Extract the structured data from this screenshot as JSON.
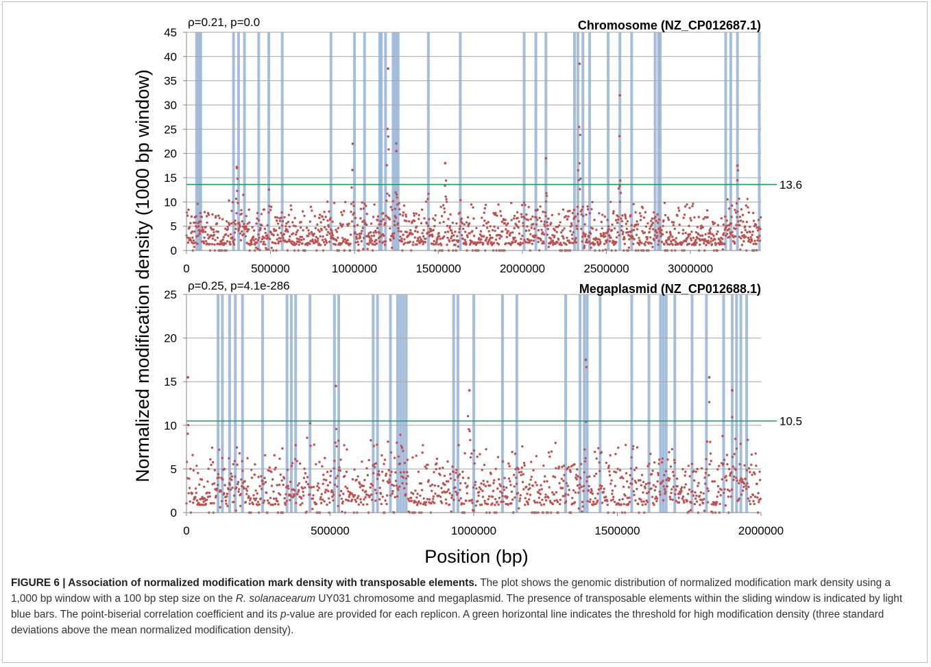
{
  "chart_data": [
    {
      "type": "scatter",
      "replicon_label": "Chromosome (NZ_CP012687.1)",
      "stat_label": "ρ=0.21, p=0.0",
      "xlim": [
        0,
        3420000
      ],
      "ylim": [
        0,
        45
      ],
      "xticks": [
        0,
        500000,
        1000000,
        1500000,
        2000000,
        2500000,
        3000000
      ],
      "yticks": [
        0,
        5,
        10,
        15,
        20,
        25,
        30,
        35,
        40,
        45
      ],
      "grid": "horizontal",
      "threshold": 13.6,
      "threshold_label": "13.6",
      "point_color": "#c0504d",
      "bar_color": "#95b3d7",
      "threshold_color": "#00a651",
      "transposable_element_positions": [
        60000,
        75000,
        85000,
        280000,
        310000,
        345000,
        430000,
        490000,
        570000,
        860000,
        1000000,
        1060000,
        1150000,
        1160000,
        1185000,
        1230000,
        1245000,
        1260000,
        1440000,
        1630000,
        2010000,
        2080000,
        2140000,
        2310000,
        2330000,
        2360000,
        2400000,
        2510000,
        2580000,
        2650000,
        2790000,
        2810000,
        2820000,
        3210000,
        3240000,
        3280000,
        3410000
      ],
      "density_peaks": [
        {
          "x": 1200000,
          "y": 37.5
        },
        {
          "x": 2340000,
          "y": 38.5
        },
        {
          "x": 2580000,
          "y": 32.0
        },
        {
          "x": 990000,
          "y": 22.0
        },
        {
          "x": 2140000,
          "y": 19.0
        },
        {
          "x": 3280000,
          "y": 17.5
        },
        {
          "x": 300000,
          "y": 17.0
        },
        {
          "x": 1250000,
          "y": 20.5
        },
        {
          "x": 1540000,
          "y": 18.0
        }
      ]
    },
    {
      "type": "scatter",
      "replicon_label": "Megaplasmid (NZ_CP012688.1)",
      "stat_label": "ρ=0.25, p=4.1e-286",
      "xlim": [
        0,
        2000000
      ],
      "ylim": [
        0,
        25
      ],
      "xticks": [
        0,
        500000,
        1000000,
        1500000,
        2000000
      ],
      "yticks": [
        0,
        5,
        10,
        15,
        20,
        25
      ],
      "grid": "horizontal",
      "threshold": 10.5,
      "threshold_label": "10.5",
      "point_color": "#c0504d",
      "bar_color": "#95b3d7",
      "threshold_color": "#00a651",
      "transposable_element_positions": [
        110000,
        125000,
        150000,
        170000,
        195000,
        265000,
        350000,
        365000,
        380000,
        430000,
        515000,
        530000,
        650000,
        665000,
        710000,
        735000,
        745000,
        755000,
        765000,
        930000,
        945000,
        1000000,
        1100000,
        1150000,
        1320000,
        1370000,
        1385000,
        1395000,
        1440000,
        1550000,
        1610000,
        1650000,
        1660000,
        1670000,
        1700000,
        1760000,
        1810000,
        1870000,
        1900000,
        1915000,
        1930000,
        1950000
      ],
      "density_peaks": [
        {
          "x": 5000,
          "y": 15.5
        },
        {
          "x": 1390000,
          "y": 17.5
        },
        {
          "x": 1820000,
          "y": 15.5
        },
        {
          "x": 520000,
          "y": 14.5
        },
        {
          "x": 985000,
          "y": 14.0
        },
        {
          "x": 1900000,
          "y": 14.0
        }
      ]
    }
  ],
  "axes": {
    "ylabel": "Normalized modification density (1000 bp window)",
    "xlabel": "Position (bp)"
  },
  "caption": {
    "title": "FIGURE 6 | Association of normalized modification mark density with transposable elements.",
    "text_part1": " The plot shows the genomic distribution of normalized modification mark density using a 1,000 bp window with a 100 bp step size on the ",
    "species": "R. solanacearum",
    "text_part2": " UY031 chromosome and megaplasmid. The presence of transposable elements within the sliding window is indicated by light blue bars. The point-biserial correlation coefficient and its ",
    "p_italic": "p",
    "text_part3": "-value are provided for each replicon. A green horizontal line indicates the threshold for high modification density (three standard deviations above the mean normalized modification density)."
  }
}
